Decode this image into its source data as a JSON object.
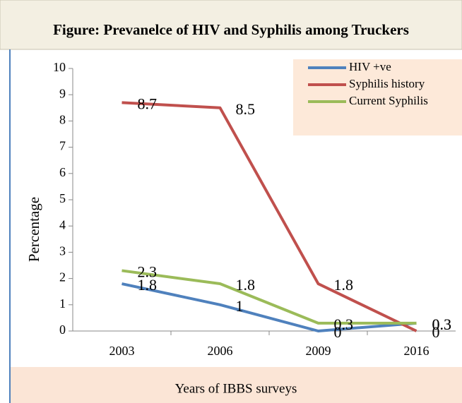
{
  "chart_data": {
    "type": "line",
    "title": "Figure: Prevanelce of HIV and Syphilis among Truckers",
    "x_label": "Years of IBBS surveys",
    "y_label": "Percentage",
    "categories": [
      "2003",
      "2006",
      "2009",
      "2016"
    ],
    "series": [
      {
        "name": "HIV +ve",
        "color": "#4f81bd",
        "values": [
          1.8,
          1,
          0,
          0.3
        ]
      },
      {
        "name": "Syphilis history",
        "color": "#c0504d",
        "values": [
          8.7,
          8.5,
          1.8,
          0
        ]
      },
      {
        "name": "Current Syphilis",
        "color": "#9bbb59",
        "values": [
          2.3,
          1.8,
          0.3,
          0.3
        ]
      }
    ],
    "ylim": [
      0,
      10
    ],
    "yticks": [
      0,
      1,
      2,
      3,
      4,
      5,
      6,
      7,
      8,
      9,
      10
    ],
    "legend": "upper right"
  }
}
